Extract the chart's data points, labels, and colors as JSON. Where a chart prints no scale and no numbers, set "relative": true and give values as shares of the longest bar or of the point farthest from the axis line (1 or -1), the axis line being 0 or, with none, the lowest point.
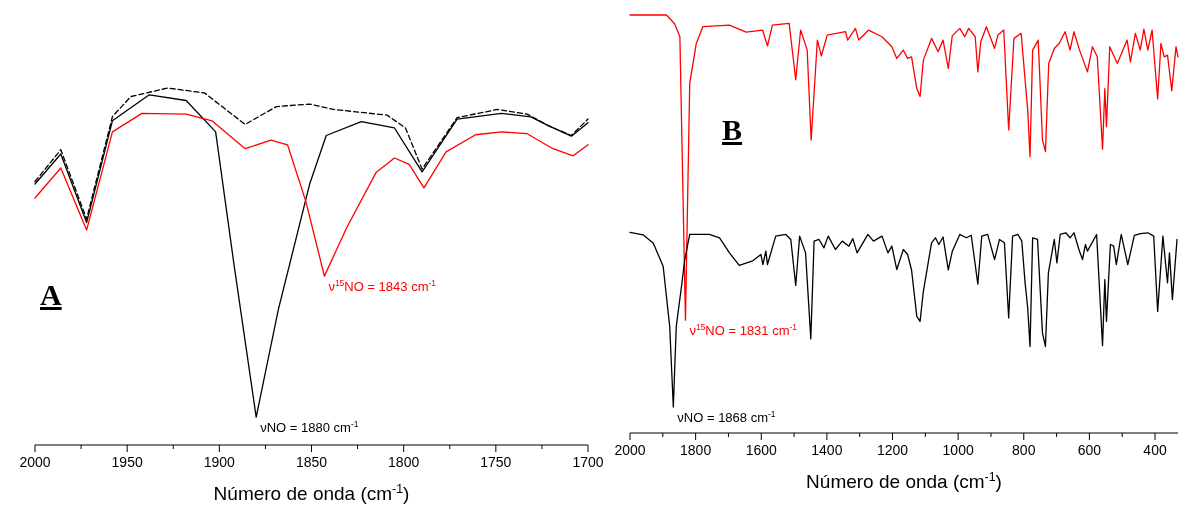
{
  "chart_data": [
    {
      "type": "line",
      "relative": true,
      "xlabel": "Número de onda (cm$^{-1}$)",
      "xlim": [
        2000,
        1700
      ],
      "xticks": [
        2000,
        {
          "value": 1975,
          "label": null
        },
        1950,
        {
          "value": 1925,
          "label": null
        },
        1900,
        {
          "value": 1875,
          "label": null
        },
        1850,
        {
          "value": 1825,
          "label": null
        },
        1800,
        {
          "value": 1775,
          "label": null
        },
        1750,
        {
          "value": 1725,
          "label": null
        },
        1700
      ],
      "annotations": [
        "A",
        {
          "text": "νNO = 1880 cm$^{-1}$",
          "x": 1880,
          "y": 0.078
        },
        {
          "text": "ν$^{15}$NO = 1843 cm$^{-1}$",
          "x": 1843,
          "y": 0.473
        }
      ],
      "series": [
        {
          "color": "#000000",
          "line_style": "dashed",
          "x": [
            2000,
            1986,
            1972,
            1958,
            1948,
            1928,
            1908,
            1886,
            1869,
            1851,
            1838,
            1809,
            1799,
            1790,
            1771,
            1749,
            1733,
            1721,
            1709,
            1700
          ],
          "values": [
            0.738,
            0.827,
            0.633,
            0.92,
            0.976,
            1.0,
            0.986,
            0.898,
            0.948,
            0.955,
            0.94,
            0.924,
            0.888,
            0.773,
            0.917,
            0.94,
            0.927,
            0.893,
            0.867,
            0.913
          ]
        },
        {
          "color": "#000000",
          "x": [
            2000,
            1986,
            1972,
            1958,
            1938,
            1918,
            1902,
            1892,
            1880,
            1868,
            1851,
            1842,
            1823,
            1805,
            1790,
            1771,
            1747,
            1731,
            1721,
            1709,
            1700
          ],
          "values": [
            0.731,
            0.815,
            0.623,
            0.908,
            0.981,
            0.965,
            0.877,
            0.504,
            0.078,
            0.379,
            0.731,
            0.867,
            0.906,
            0.888,
            0.765,
            0.913,
            0.929,
            0.919,
            0.893,
            0.865,
            0.903
          ]
        },
        {
          "color": "#ff0000",
          "x": [
            2000,
            1986,
            1972,
            1958,
            1942,
            1918,
            1904,
            1886,
            1872,
            1863,
            1853,
            1843,
            1831,
            1815,
            1805,
            1797,
            1789,
            1777,
            1761,
            1747,
            1733,
            1719,
            1708,
            1700
          ],
          "values": [
            0.692,
            0.776,
            0.602,
            0.877,
            0.929,
            0.927,
            0.908,
            0.83,
            0.854,
            0.841,
            0.681,
            0.473,
            0.608,
            0.763,
            0.804,
            0.786,
            0.72,
            0.821,
            0.869,
            0.877,
            0.872,
            0.83,
            0.81,
            0.841
          ]
        }
      ]
    },
    {
      "type": "line",
      "relative": true,
      "xlabel": "Número de onda (cm$^{-1}$)",
      "xlim": [
        2000,
        330
      ],
      "xticks": [
        2000,
        {
          "value": 1900,
          "label": null
        },
        1800,
        {
          "value": 1700,
          "label": null
        },
        1600,
        {
          "value": 1500,
          "label": null
        },
        1400,
        {
          "value": 1300,
          "label": null
        },
        1200,
        {
          "value": 1100,
          "label": null
        },
        1000,
        {
          "value": 900,
          "label": null
        },
        800,
        {
          "value": 700,
          "label": null
        },
        600,
        {
          "value": 500,
          "label": null
        },
        400
      ],
      "annotations": [
        "B",
        {
          "text": "ν$^{15}$NO = 1831 cm$^{-1}$",
          "x": 1831,
          "y": 0.27
        },
        {
          "text": "νNO = 1868 cm$^{-1}$",
          "x": 1868,
          "y": 0.062
        }
      ],
      "series": [
        {
          "color": "#ff0000",
          "x": [
            2000,
            1889,
            1864,
            1848,
            1831,
            1818,
            1798,
            1778,
            1697,
            1646,
            1596,
            1581,
            1566,
            1515,
            1495,
            1480,
            1460,
            1448,
            1429,
            1417,
            1399,
            1343,
            1337,
            1313,
            1303,
            1273,
            1232,
            1202,
            1187,
            1167,
            1154,
            1142,
            1126,
            1116,
            1106,
            1081,
            1061,
            1046,
            1030,
            1018,
            995,
            980,
            968,
            948,
            940,
            931,
            914,
            889,
            879,
            861,
            846,
            830,
            808,
            796,
            788,
            781,
            773,
            756,
            743,
            734,
            724,
            707,
            692,
            674,
            659,
            647,
            630,
            606,
            591,
            576,
            560,
            553,
            548,
            538,
            515,
            485,
            475,
            460,
            445,
            434,
            422,
            409,
            392,
            382,
            372,
            362,
            349,
            336,
            330
          ],
          "values": [
            1.0,
            1.0,
            0.979,
            0.948,
            0.27,
            0.837,
            0.932,
            0.972,
            0.976,
            0.959,
            0.964,
            0.926,
            0.976,
            0.98,
            0.845,
            0.964,
            0.916,
            0.701,
            0.94,
            0.902,
            0.952,
            0.96,
            0.94,
            0.968,
            0.94,
            0.964,
            0.948,
            0.924,
            0.896,
            0.916,
            0.896,
            0.9,
            0.824,
            0.805,
            0.892,
            0.944,
            0.912,
            0.94,
            0.872,
            0.95,
            0.968,
            0.948,
            0.968,
            0.948,
            0.864,
            0.936,
            0.972,
            0.92,
            0.952,
            0.964,
            0.725,
            0.944,
            0.956,
            0.845,
            0.773,
            0.661,
            0.916,
            0.94,
            0.701,
            0.673,
            0.884,
            0.92,
            0.932,
            0.96,
            0.916,
            0.96,
            0.916,
            0.864,
            0.924,
            0.9,
            0.679,
            0.824,
            0.733,
            0.924,
            0.884,
            0.94,
            0.888,
            0.956,
            0.916,
            0.966,
            0.916,
            0.964,
            0.799,
            0.932,
            0.9,
            0.904,
            0.819,
            0.924,
            0.9
          ]
        },
        {
          "color": "#000000",
          "x": [
            2000,
            1960,
            1929,
            1899,
            1879,
            1868,
            1859,
            1843,
            1833,
            1818,
            1758,
            1727,
            1697,
            1667,
            1626,
            1601,
            1595,
            1586,
            1581,
            1556,
            1525,
            1510,
            1495,
            1483,
            1465,
            1449,
            1439,
            1424,
            1409,
            1396,
            1374,
            1353,
            1333,
            1321,
            1308,
            1275,
            1258,
            1232,
            1214,
            1202,
            1187,
            1167,
            1154,
            1142,
            1126,
            1116,
            1106,
            1081,
            1069,
            1059,
            1046,
            1030,
            1018,
            995,
            975,
            960,
            940,
            928,
            910,
            889,
            874,
            859,
            846,
            834,
            818,
            806,
            796,
            788,
            781,
            773,
            758,
            743,
            734,
            725,
            707,
            699,
            689,
            672,
            659,
            647,
            632,
            621,
            612,
            606,
            578,
            560,
            553,
            548,
            536,
            526,
            518,
            503,
            483,
            463,
            445,
            422,
            404,
            392,
            376,
            362,
            356,
            347,
            333
          ],
          "values": [
            0.48,
            0.474,
            0.454,
            0.399,
            0.255,
            0.062,
            0.255,
            0.351,
            0.415,
            0.475,
            0.475,
            0.467,
            0.431,
            0.401,
            0.412,
            0.427,
            0.403,
            0.435,
            0.403,
            0.471,
            0.475,
            0.463,
            0.353,
            0.471,
            0.431,
            0.225,
            0.459,
            0.463,
            0.443,
            0.471,
            0.439,
            0.459,
            0.447,
            0.465,
            0.431,
            0.475,
            0.459,
            0.471,
            0.431,
            0.447,
            0.391,
            0.439,
            0.427,
            0.39,
            0.279,
            0.267,
            0.339,
            0.455,
            0.467,
            0.451,
            0.469,
            0.39,
            0.434,
            0.475,
            0.467,
            0.473,
            0.356,
            0.471,
            0.475,
            0.415,
            0.463,
            0.455,
            0.275,
            0.471,
            0.475,
            0.459,
            0.359,
            0.299,
            0.207,
            0.467,
            0.463,
            0.239,
            0.207,
            0.383,
            0.463,
            0.407,
            0.475,
            0.479,
            0.467,
            0.479,
            0.439,
            0.415,
            0.451,
            0.435,
            0.475,
            0.209,
            0.367,
            0.267,
            0.451,
            0.447,
            0.403,
            0.475,
            0.403,
            0.473,
            0.477,
            0.479,
            0.471,
            0.291,
            0.471,
            0.359,
            0.431,
            0.319,
            0.463
          ]
        }
      ]
    }
  ]
}
